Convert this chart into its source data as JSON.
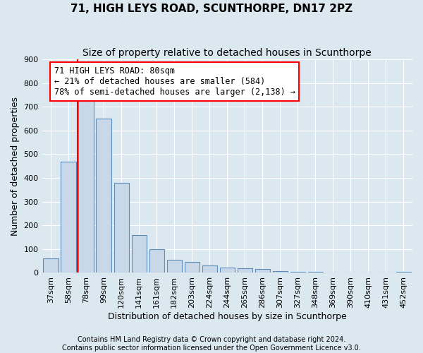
{
  "title": "71, HIGH LEYS ROAD, SCUNTHORPE, DN17 2PZ",
  "subtitle": "Size of property relative to detached houses in Scunthorpe",
  "xlabel": "Distribution of detached houses by size in Scunthorpe",
  "ylabel": "Number of detached properties",
  "bar_labels": [
    "37sqm",
    "58sqm",
    "78sqm",
    "99sqm",
    "120sqm",
    "141sqm",
    "161sqm",
    "182sqm",
    "203sqm",
    "224sqm",
    "244sqm",
    "265sqm",
    "286sqm",
    "307sqm",
    "327sqm",
    "348sqm",
    "369sqm",
    "390sqm",
    "410sqm",
    "431sqm",
    "452sqm"
  ],
  "bar_values": [
    62,
    470,
    740,
    650,
    380,
    160,
    100,
    55,
    45,
    32,
    22,
    18,
    15,
    8,
    5,
    3,
    2,
    1,
    1,
    1,
    4
  ],
  "bar_color": "#c8d8e8",
  "bar_edge_color": "#5b8db8",
  "vline_color": "red",
  "vline_x": 1.5,
  "ylim_max": 900,
  "ytick_step": 100,
  "annotation_line1": "71 HIGH LEYS ROAD: 80sqm",
  "annotation_line2": "← 21% of detached houses are smaller (584)",
  "annotation_line3": "78% of semi-detached houses are larger (2,138) →",
  "annotation_box_color": "white",
  "annotation_box_edge_color": "red",
  "footer_line1": "Contains HM Land Registry data © Crown copyright and database right 2024.",
  "footer_line2": "Contains public sector information licensed under the Open Government Licence v3.0.",
  "bg_color": "#dce8f0",
  "grid_color": "white",
  "title_fontsize": 11,
  "subtitle_fontsize": 10,
  "ylabel_fontsize": 9,
  "xlabel_fontsize": 9,
  "tick_fontsize": 8,
  "annot_fontsize": 8.5,
  "footer_fontsize": 7
}
